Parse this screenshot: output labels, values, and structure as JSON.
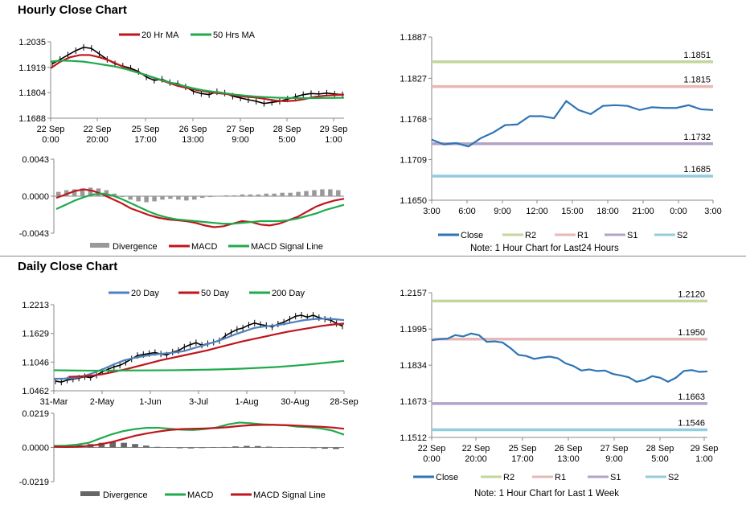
{
  "hourly_title": "Hourly Close Chart",
  "daily_title": "Daily Close Chart",
  "chart_data": [
    {
      "id": "hourly-price",
      "type": "line",
      "ylim": [
        1.1688,
        1.2035
      ],
      "yticks": [
        "1.2035",
        "1.1919",
        "1.1804",
        "1.1688"
      ],
      "ytick_values": [
        1.2035,
        1.1919,
        1.1804,
        1.1688
      ],
      "xticks": [
        "22 Sep\n0:00",
        "22 Sep\n20:00",
        "25 Sep\n17:00",
        "26 Sep\n13:00",
        "27 Sep\n9:00",
        "28 Sep\n5:00",
        "29 Sep\n1:00"
      ],
      "legend": [
        "20 Hr MA",
        "50 Hrs MA"
      ],
      "close": [
        1.1935,
        1.1955,
        1.1975,
        1.1995,
        1.201,
        1.2005,
        1.198,
        1.1955,
        1.1935,
        1.1925,
        1.1915,
        1.19,
        1.1875,
        1.186,
        1.1865,
        1.185,
        1.1845,
        1.183,
        1.181,
        1.18,
        1.1795,
        1.1808,
        1.1802,
        1.1788,
        1.178,
        1.1772,
        1.1765,
        1.1755,
        1.176,
        1.1765,
        1.1775,
        1.1785,
        1.1795,
        1.18,
        1.1798,
        1.1802,
        1.1798,
        1.1795
      ],
      "series": [
        {
          "name": "20 Hr MA",
          "color": "#c0141c",
          "values": [
            1.1915,
            1.1945,
            1.1965,
            1.1975,
            1.1975,
            1.1965,
            1.195,
            1.193,
            1.191,
            1.1895,
            1.188,
            1.1865,
            1.185,
            1.1835,
            1.1825,
            1.1815,
            1.1808,
            1.1802,
            1.1798,
            1.179,
            1.1785,
            1.1782,
            1.1775,
            1.1768,
            1.1765,
            1.1768,
            1.1775,
            1.1785,
            1.179,
            1.1793,
            1.1795
          ]
        },
        {
          "name": "50 Hrs MA",
          "color": "#1faa4b",
          "values": [
            1.1945,
            1.195,
            1.1948,
            1.1945,
            1.1938,
            1.193,
            1.1922,
            1.191,
            1.1895,
            1.188,
            1.1865,
            1.185,
            1.1838,
            1.1825,
            1.1815,
            1.1808,
            1.1802,
            1.1795,
            1.179,
            1.1786,
            1.1783,
            1.1781,
            1.178,
            1.1779,
            1.1779,
            1.178,
            1.178,
            1.1781
          ]
        }
      ]
    },
    {
      "id": "hourly-macd",
      "type": "line",
      "ylim": [
        -0.0043,
        0.0043
      ],
      "yticks": [
        "0.0043",
        "0.0000",
        "-0.0043"
      ],
      "ytick_values": [
        0.0043,
        0.0,
        -0.0043
      ],
      "legend": [
        "Divergence",
        "MACD",
        "MACD Signal Line"
      ],
      "divergence": [
        0.0005,
        0.0007,
        0.0008,
        0.0009,
        0.001,
        0.0009,
        0.0007,
        0.0003,
        -0.0001,
        -0.0004,
        -0.0006,
        -0.0007,
        -0.0006,
        -0.0004,
        -0.0003,
        -0.0004,
        -0.0005,
        -0.0004,
        -0.0002,
        -0.0001,
        0.0,
        0.0001,
        0.0001,
        0.0002,
        0.0002,
        0.0002,
        0.0003,
        0.0003,
        0.0004,
        0.0004,
        0.0005,
        0.0006,
        0.0007,
        0.0008,
        0.0008,
        0.0007
      ],
      "series": [
        {
          "name": "MACD",
          "color": "#c0141c",
          "values": [
            -0.0002,
            0.0002,
            0.0006,
            0.0008,
            0.0006,
            0.0002,
            -0.0003,
            -0.0008,
            -0.0014,
            -0.0018,
            -0.0022,
            -0.0025,
            -0.0027,
            -0.0028,
            -0.0029,
            -0.0031,
            -0.0034,
            -0.0036,
            -0.0035,
            -0.0032,
            -0.0029,
            -0.003,
            -0.0033,
            -0.0034,
            -0.0032,
            -0.0028,
            -0.0024,
            -0.0018,
            -0.0012,
            -0.0008,
            -0.0005,
            -0.0003
          ]
        },
        {
          "name": "MACD Signal Line",
          "color": "#1faa4b",
          "values": [
            -0.0015,
            -0.001,
            -0.0005,
            -0.0001,
            0.0002,
            0.0003,
            0.0001,
            -0.0003,
            -0.0008,
            -0.0013,
            -0.0018,
            -0.0022,
            -0.0025,
            -0.0027,
            -0.0028,
            -0.0029,
            -0.003,
            -0.0031,
            -0.0032,
            -0.0032,
            -0.0031,
            -0.003,
            -0.0029,
            -0.0029,
            -0.0029,
            -0.0028,
            -0.0026,
            -0.0023,
            -0.002,
            -0.0016,
            -0.0013,
            -0.001
          ]
        }
      ]
    },
    {
      "id": "hourly-pivot",
      "type": "line",
      "ylim": [
        1.165,
        1.1887
      ],
      "yticks": [
        "1.1887",
        "1.1827",
        "1.1768",
        "1.1709",
        "1.1650"
      ],
      "ytick_values": [
        1.1887,
        1.1827,
        1.1768,
        1.1709,
        1.165
      ],
      "xticks": [
        "3:00",
        "6:00",
        "9:00",
        "12:00",
        "15:00",
        "18:00",
        "21:00",
        "0:00",
        "3:00"
      ],
      "levels": [
        {
          "name": "R2",
          "value": 1.1851,
          "label": "1.1851",
          "color": "#c3d69b"
        },
        {
          "name": "R1",
          "value": 1.1815,
          "label": "1.1815",
          "color": "#e6b9b8"
        },
        {
          "name": "S1",
          "value": 1.1732,
          "label": "1.1732",
          "color": "#b3a2c7"
        },
        {
          "name": "S2",
          "value": 1.1685,
          "label": "1.1685",
          "color": "#93cddd"
        }
      ],
      "series": [
        {
          "name": "Close",
          "color": "#2e75b6",
          "values": [
            1.1738,
            1.1731,
            1.1733,
            1.1728,
            1.174,
            1.1748,
            1.1759,
            1.176,
            1.1772,
            1.1772,
            1.1769,
            1.1794,
            1.1781,
            1.1775,
            1.1787,
            1.1788,
            1.1787,
            1.1781,
            1.1785,
            1.1784,
            1.1784,
            1.1788,
            1.1782,
            1.1781
          ]
        }
      ],
      "legend": [
        "Close",
        "R2",
        "R1",
        "S1",
        "S2"
      ],
      "note": "Note: 1 Hour Chart for Last24 Hours"
    },
    {
      "id": "daily-price",
      "type": "line",
      "ylim": [
        1.0462,
        1.2213
      ],
      "yticks": [
        "1.2213",
        "1.1629",
        "1.1046",
        "1.0462"
      ],
      "ytick_values": [
        1.2213,
        1.1629,
        1.1046,
        1.0462
      ],
      "xticks": [
        "31-Mar",
        "2-May",
        "1-Jun",
        "3-Jul",
        "1-Aug",
        "30-Aug",
        "28-Sep"
      ],
      "legend": [
        "20 Day",
        "50 Day",
        "200 Day"
      ],
      "close": [
        1.066,
        1.064,
        1.068,
        1.07,
        1.072,
        1.075,
        1.073,
        1.078,
        1.085,
        1.09,
        1.095,
        1.098,
        1.104,
        1.111,
        1.118,
        1.12,
        1.122,
        1.124,
        1.121,
        1.119,
        1.125,
        1.128,
        1.135,
        1.14,
        1.144,
        1.139,
        1.142,
        1.145,
        1.148,
        1.158,
        1.165,
        1.171,
        1.174,
        1.18,
        1.184,
        1.181,
        1.179,
        1.176,
        1.182,
        1.186,
        1.192,
        1.198,
        1.2,
        1.196,
        1.2,
        1.195,
        1.192,
        1.19,
        1.183,
        1.178
      ],
      "series": [
        {
          "name": "20 Day",
          "color": "#4f81bd",
          "values": [
            1.0705,
            1.071,
            1.072,
            1.076,
            1.083,
            1.091,
            1.1,
            1.108,
            1.113,
            1.117,
            1.12,
            1.122,
            1.124,
            1.127,
            1.133,
            1.139,
            1.145,
            1.152,
            1.16,
            1.167,
            1.174,
            1.177,
            1.179,
            1.182,
            1.186,
            1.19,
            1.192,
            1.193,
            1.192,
            1.19
          ]
        },
        {
          "name": "50 Day",
          "color": "#c0141c",
          "values": [
            1.0745,
            1.0755,
            1.077,
            1.08,
            1.085,
            1.09,
            1.096,
            1.102,
            1.108,
            1.113,
            1.118,
            1.123,
            1.128,
            1.134,
            1.14,
            1.146,
            1.151,
            1.156,
            1.161,
            1.166,
            1.17,
            1.174,
            1.178,
            1.181,
            1.183
          ]
        },
        {
          "name": "200 Day",
          "color": "#1faa4b",
          "values": [
            1.088,
            1.0875,
            1.0872,
            1.0872,
            1.0875,
            1.0876,
            1.0878,
            1.088,
            1.0885,
            1.0892,
            1.09,
            1.0912,
            1.0928,
            1.0945,
            1.097,
            1.1,
            1.1035,
            1.107
          ]
        }
      ]
    },
    {
      "id": "daily-macd",
      "type": "line",
      "ylim": [
        -0.0219,
        0.0219
      ],
      "yticks": [
        "0.0219",
        "0.0000",
        "-0.0219"
      ],
      "ytick_values": [
        0.0219,
        0.0,
        -0.0219
      ],
      "legend": [
        "Divergence",
        "MACD",
        "MACD Signal Line"
      ],
      "divergence": [
        0.0005,
        0.001,
        0.0015,
        0.0022,
        0.003,
        0.0035,
        0.003,
        0.0022,
        0.0012,
        0.0004,
        -0.0002,
        -0.0005,
        -0.0006,
        -0.0004,
        -0.0001,
        0.0003,
        0.0007,
        0.001,
        0.0009,
        0.0005,
        0.0002,
        0.0001,
        -0.0002,
        -0.0005,
        -0.0008,
        -0.001
      ],
      "series": [
        {
          "name": "MACD",
          "color": "#1faa4b",
          "values": [
            0.001,
            0.0012,
            0.0018,
            0.003,
            0.0058,
            0.0085,
            0.0105,
            0.0118,
            0.0126,
            0.0126,
            0.012,
            0.0114,
            0.0112,
            0.0118,
            0.0128,
            0.0148,
            0.016,
            0.0155,
            0.0148,
            0.0145,
            0.0142,
            0.0133,
            0.013,
            0.0122,
            0.0108,
            0.0082
          ]
        },
        {
          "name": "MACD Signal Line",
          "color": "#c0141c",
          "values": [
            0.0005,
            0.0003,
            0.0005,
            0.001,
            0.002,
            0.0035,
            0.0055,
            0.0075,
            0.009,
            0.0102,
            0.0112,
            0.0118,
            0.012,
            0.0122,
            0.0125,
            0.013,
            0.0138,
            0.0143,
            0.0145,
            0.0145,
            0.0143,
            0.014,
            0.0136,
            0.0133,
            0.0128,
            0.012
          ]
        }
      ]
    },
    {
      "id": "daily-pivot",
      "type": "line",
      "ylim": [
        1.1512,
        1.2157
      ],
      "yticks": [
        "1.2157",
        "1.1995",
        "1.1834",
        "1.1673",
        "1.1512"
      ],
      "ytick_values": [
        1.2157,
        1.1995,
        1.1834,
        1.1673,
        1.1512
      ],
      "xticks": [
        "22 Sep\n0:00",
        "22 Sep\n20:00",
        "25 Sep\n17:00",
        "26 Sep\n13:00",
        "27 Sep\n9:00",
        "28 Sep\n5:00",
        "29 Sep\n1:00"
      ],
      "levels": [
        {
          "name": "R2",
          "value": 1.212,
          "label": "1.2120",
          "color": "#c3d69b"
        },
        {
          "name": "R1",
          "value": 1.195,
          "label": "1.1950",
          "color": "#e6b9b8"
        },
        {
          "name": "S1",
          "value": 1.1663,
          "label": "1.1663",
          "color": "#b3a2c7"
        },
        {
          "name": "S2",
          "value": 1.1546,
          "label": "1.1546",
          "color": "#93cddd"
        }
      ],
      "series": [
        {
          "name": "Close",
          "color": "#2e75b6",
          "values": [
            1.1945,
            1.195,
            1.1952,
            1.1968,
            1.1962,
            1.1975,
            1.1968,
            1.1938,
            1.194,
            1.1935,
            1.191,
            1.188,
            1.1875,
            1.1862,
            1.1868,
            1.1872,
            1.1865,
            1.1842,
            1.183,
            1.181,
            1.1815,
            1.1808,
            1.181,
            1.1795,
            1.1788,
            1.178,
            1.176,
            1.1768,
            1.1785,
            1.1778,
            1.176,
            1.1778,
            1.1808,
            1.1812,
            1.1804,
            1.1806
          ]
        }
      ],
      "legend": [
        "Close",
        "R2",
        "R1",
        "S1",
        "S2"
      ],
      "note": "Note: 1 Hour Chart for Last 1 Week"
    }
  ]
}
